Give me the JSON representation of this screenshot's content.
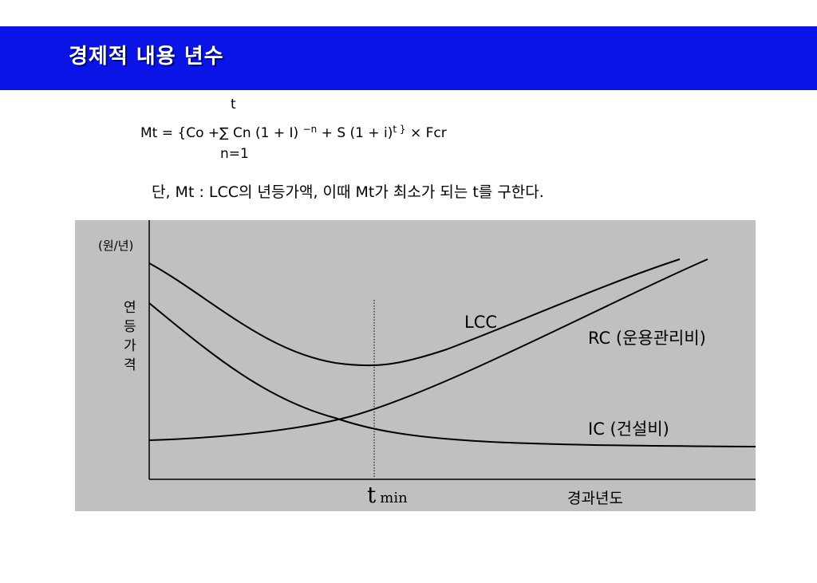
{
  "title": "경제적 내용 년수",
  "formula": {
    "upper_limit": "t",
    "lhs": "Mt = {Co +",
    "sigma": "∑",
    "term_cn": "Cn (1 + I)",
    "exp_n": "−n",
    "term_s": "+ S (1 + i)",
    "exp_t": "t }",
    "tail": "×  Fcr",
    "lower_limit": "n=1"
  },
  "note": "단, Mt : LCC의 년등가액,   이때 Mt가 최소가 되는 t를 구한다.",
  "diagram": {
    "y_unit": "(원/년)",
    "y_label_chars": [
      "연",
      "등",
      "가",
      "격"
    ],
    "x_label": "경과년도",
    "tmin_main": "t",
    "tmin_sub": "min",
    "curves": {
      "lcc": "LCC",
      "rc": "RC (운용관리비)",
      "ic": "IC (건설비)"
    }
  }
}
